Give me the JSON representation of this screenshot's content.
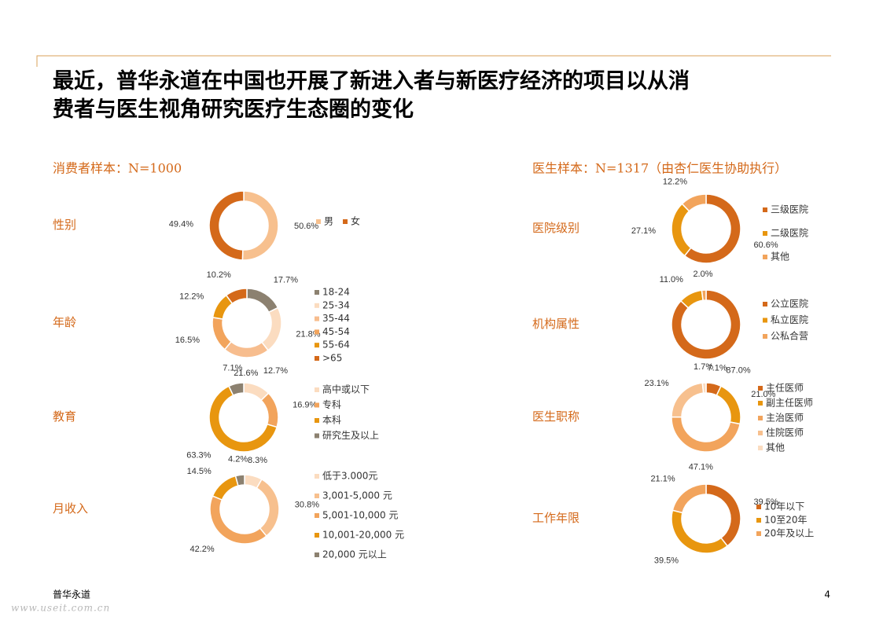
{
  "title_lines": [
    "最近，普华永道在中国也开展了新进入者与新医疗经济的项目以从消",
    "费者与医生视角研究医疗生态圈的变化"
  ],
  "sections": [
    "消费者样本：N=1000",
    "医生样本：N=1317（由杏仁医生协助执行）"
  ],
  "footer": "普华永道",
  "page_number": "4",
  "watermark": "www.useit.com.cn",
  "chart_data": [
    {
      "type": "donut",
      "title": "性别",
      "legend_layout": "row",
      "categories": [
        "男",
        "女"
      ],
      "values": [
        50.6,
        49.4
      ],
      "value_labels": [
        "50.6%",
        "49.4%"
      ],
      "colors": [
        "#f7c08e",
        "#d4691a"
      ]
    },
    {
      "type": "donut",
      "title": "年龄",
      "legend_layout": "column",
      "categories": [
        "18-24",
        "25-34",
        "35-44",
        "45-54",
        "55-64",
        ">65"
      ],
      "values": [
        17.7,
        21.8,
        21.6,
        16.5,
        12.2,
        10.2
      ],
      "value_labels": [
        "17.7%",
        "21.8%",
        "21.6%",
        "16.5%",
        "12.2%",
        "10.2%"
      ],
      "colors": [
        "#8c8170",
        "#fbdcc0",
        "#f7bd8e",
        "#f2a45c",
        "#e8960f",
        "#d4691a"
      ]
    },
    {
      "type": "donut",
      "title": "教育",
      "legend_layout": "column",
      "categories": [
        "高中或以下",
        "专科",
        "本科",
        "研究生及以上"
      ],
      "values": [
        12.7,
        16.9,
        63.3,
        7.1
      ],
      "value_labels": [
        "12.7%",
        "16.9%",
        "63.3%",
        "7.1%"
      ],
      "colors": [
        "#fbdcc0",
        "#f2a45c",
        "#e8960f",
        "#8c8170"
      ]
    },
    {
      "type": "donut",
      "title": "月收入",
      "legend_layout": "column",
      "categories": [
        "低于3.000元",
        "3,001-5,000 元",
        "5,001-10,000 元",
        "10,001-20,000 元",
        "20,000 元以上"
      ],
      "values": [
        8.3,
        30.8,
        42.2,
        14.5,
        4.2
      ],
      "value_labels": [
        "8.3%",
        "30.8%",
        "42.2%",
        "14.5%",
        "4.2%"
      ],
      "colors": [
        "#fbdcc0",
        "#f7c08e",
        "#f2a45c",
        "#e8960f",
        "#8c8170"
      ]
    },
    {
      "type": "donut",
      "title": "医院级别",
      "legend_layout": "column",
      "categories": [
        "三级医院",
        "二级医院",
        "其他"
      ],
      "values": [
        60.6,
        27.1,
        12.2
      ],
      "value_labels": [
        "60.6%",
        "27.1%",
        "12.2%"
      ],
      "colors": [
        "#d4691a",
        "#e8960f",
        "#f2a45c"
      ]
    },
    {
      "type": "donut",
      "title": "机构属性",
      "legend_layout": "column",
      "categories": [
        "公立医院",
        "私立医院",
        "公私合营"
      ],
      "values": [
        87.0,
        11.0,
        2.0
      ],
      "value_labels": [
        "87.0%",
        "11.0%",
        "2.0%"
      ],
      "colors": [
        "#d4691a",
        "#e8960f",
        "#f2a45c"
      ]
    },
    {
      "type": "donut",
      "title": "医生职称",
      "legend_layout": "column",
      "categories": [
        "主任医师",
        "副主任医师",
        "主治医师",
        "住院医师",
        "其他"
      ],
      "values": [
        7.1,
        21.0,
        47.1,
        23.1,
        1.7
      ],
      "value_labels": [
        "7.1%",
        "21.0%",
        "47.1%",
        "23.1%",
        "1.7%"
      ],
      "colors": [
        "#d4691a",
        "#e8960f",
        "#f2a45c",
        "#f7c08e",
        "#fbdcc0"
      ]
    },
    {
      "type": "donut",
      "title": "工作年限",
      "legend_layout": "column",
      "categories": [
        "10年以下",
        "10至20年",
        "20年及以上"
      ],
      "values": [
        39.5,
        39.5,
        21.1
      ],
      "value_labels": [
        "39.5%",
        "39.5%",
        "21.1%"
      ],
      "colors": [
        "#d4691a",
        "#e8960f",
        "#f2a45c"
      ]
    }
  ]
}
